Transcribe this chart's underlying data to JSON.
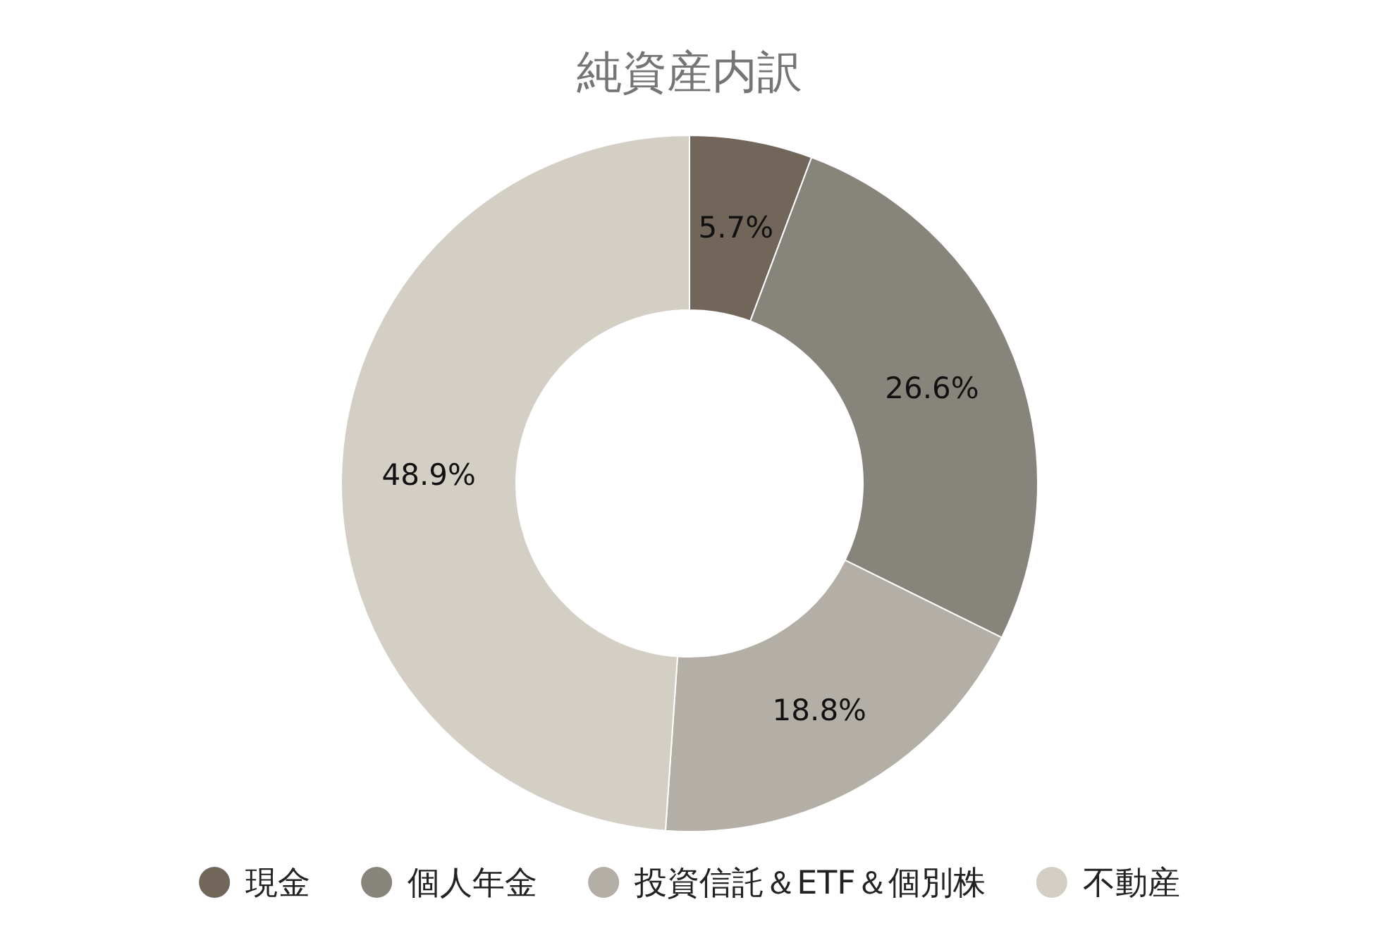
{
  "chart_data": {
    "type": "donut",
    "title": "純資産内訳",
    "categories": [
      "現金",
      "個人年金",
      "投資信託＆ETF＆個別株",
      "不動産"
    ],
    "values": [
      5.7,
      26.6,
      18.8,
      48.9
    ],
    "value_labels": [
      "5.7%",
      "26.6%",
      "18.8%",
      "48.9%"
    ],
    "colors": [
      "#716659",
      "#87847c",
      "#b3afa7",
      "#d4cfc5"
    ],
    "legend": "bottom"
  }
}
